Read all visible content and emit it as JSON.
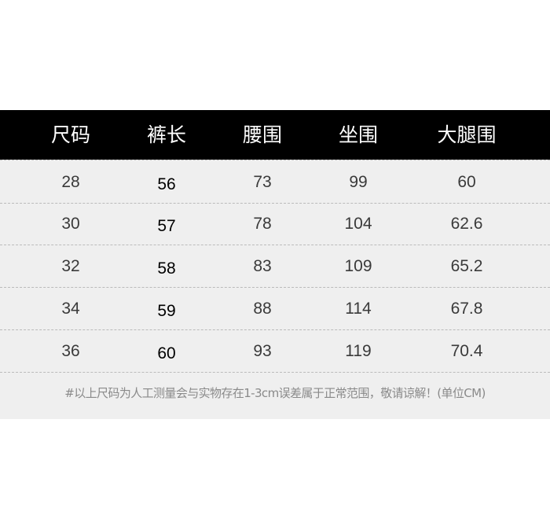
{
  "table": {
    "headers": [
      "尺码",
      "裤长",
      "腰围",
      "坐围",
      "大腿围"
    ],
    "rows": [
      [
        "28",
        "56",
        "73",
        "99",
        "60"
      ],
      [
        "30",
        "57",
        "78",
        "104",
        "62.6"
      ],
      [
        "32",
        "58",
        "83",
        "109",
        "65.2"
      ],
      [
        "34",
        "59",
        "88",
        "114",
        "67.8"
      ],
      [
        "36",
        "60",
        "93",
        "119",
        "70.4"
      ]
    ]
  },
  "footnote": "#以上尺码为人工测量会与实物存在1-3cm误差属于正常范围，敬请谅解！(单位CM)",
  "colors": {
    "header_bg": "#000000",
    "header_text": "#ffffff",
    "body_bg": "#efefef"
  }
}
